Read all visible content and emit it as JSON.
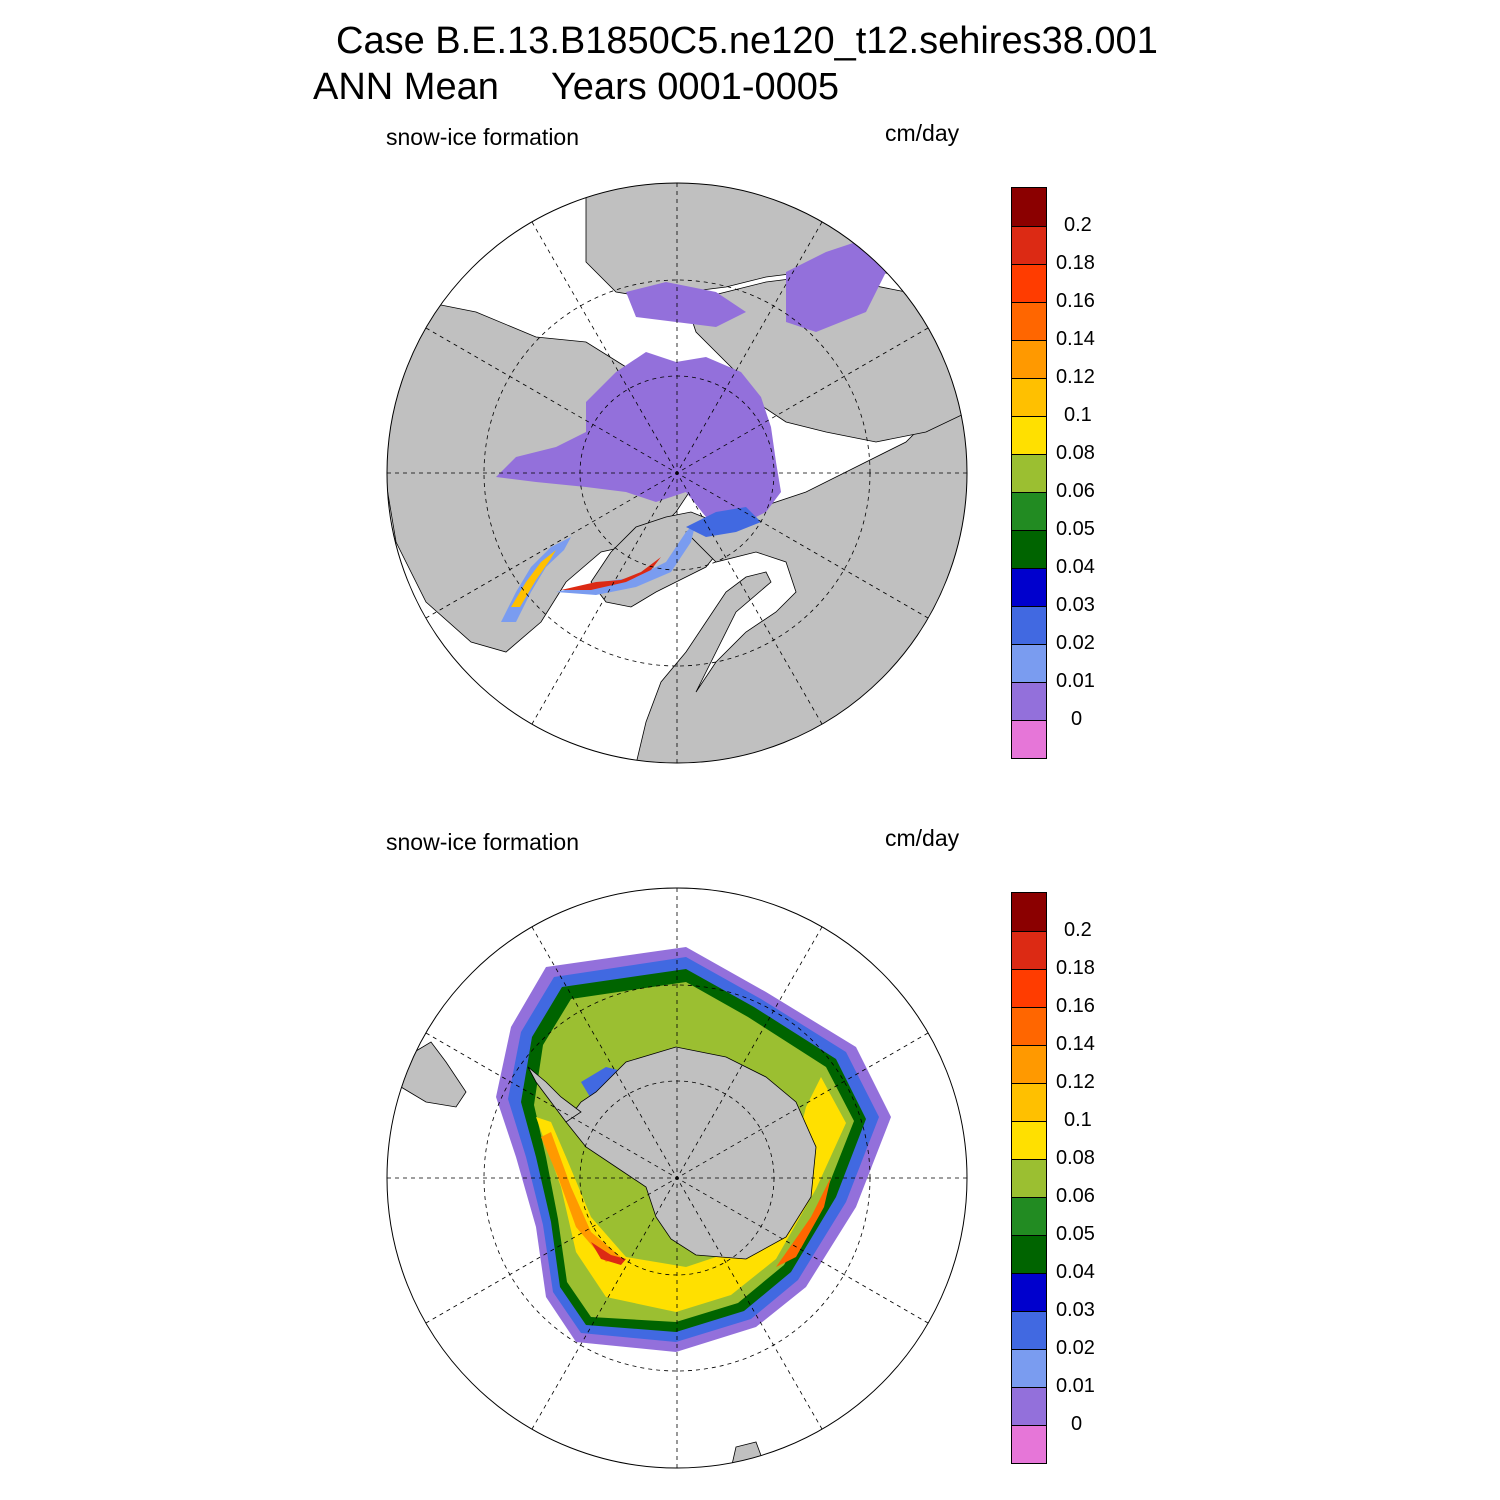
{
  "title_line1": "Case B.E.13.B1850C5.ne120_t12.sehires38.001",
  "title_line2": "ANN Mean     Years 0001-0005",
  "panels": [
    {
      "left_label": "snow-ice formation",
      "right_label": "cm/day",
      "hemisphere": "north"
    },
    {
      "left_label": "snow-ice formation",
      "right_label": "cm/day",
      "hemisphere": "south"
    }
  ],
  "colorbar": {
    "levels": [
      "0.2",
      "0.18",
      "0.16",
      "0.14",
      "0.12",
      "0.1",
      "0.08",
      "0.06",
      "0.05",
      "0.04",
      "0.03",
      "0.02",
      "0.01",
      "0"
    ],
    "colors": [
      "#8b0000",
      "#dc2a14",
      "#ff3c00",
      "#ff6600",
      "#ff9900",
      "#ffc000",
      "#ffe000",
      "#9bbf31",
      "#228b22",
      "#006400",
      "#0000cd",
      "#4169e1",
      "#7a9cf0",
      "#9370db",
      "#e676d8"
    ]
  },
  "colors": {
    "land": "#c0c0c0",
    "ocean": "#ffffff",
    "grid": "#000000"
  }
}
